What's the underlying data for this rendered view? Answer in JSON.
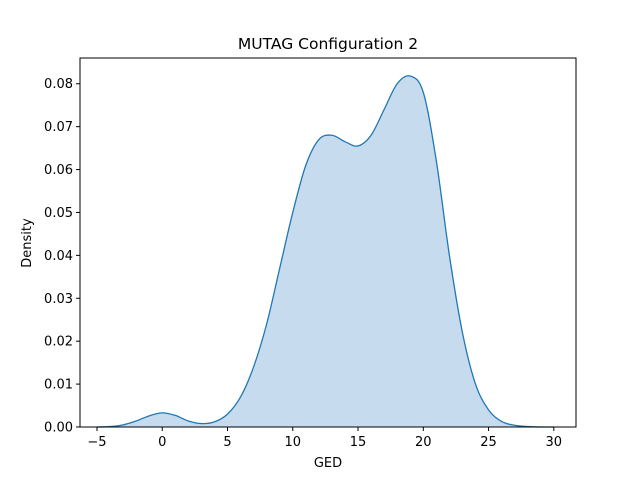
{
  "chart_data": {
    "type": "area",
    "title": "MUTAG Configuration 2",
    "xlabel": "GED",
    "ylabel": "Density",
    "xlim": [
      -6.3,
      31.7
    ],
    "ylim": [
      0,
      0.086
    ],
    "xticks": [
      -5,
      0,
      5,
      10,
      15,
      20,
      25,
      30
    ],
    "xtick_labels": [
      "−5",
      "0",
      "5",
      "10",
      "15",
      "20",
      "25",
      "30"
    ],
    "yticks": [
      0,
      0.01,
      0.02,
      0.03,
      0.04,
      0.05,
      0.06,
      0.07,
      0.08
    ],
    "ytick_labels": [
      "0.00",
      "0.01",
      "0.02",
      "0.03",
      "0.04",
      "0.05",
      "0.06",
      "0.07",
      "0.08"
    ],
    "grid": false,
    "legend": "none",
    "line_color": "#1f77b4",
    "fill_color": "#c6dbee",
    "series": [
      {
        "x": [
          -5,
          -4,
          -3,
          -2,
          -1,
          0,
          1,
          2,
          3,
          4,
          5,
          6,
          7,
          8,
          9,
          10,
          11,
          12,
          13,
          14,
          15,
          16,
          17,
          18,
          19,
          20,
          21,
          22,
          23,
          24,
          25,
          26,
          27,
          28,
          29,
          30
        ],
        "values": [
          0.0,
          0.0001,
          0.0005,
          0.0014,
          0.0026,
          0.0033,
          0.0027,
          0.0014,
          0.0008,
          0.0012,
          0.003,
          0.007,
          0.014,
          0.024,
          0.037,
          0.05,
          0.061,
          0.067,
          0.068,
          0.0665,
          0.0655,
          0.068,
          0.074,
          0.08,
          0.0818,
          0.078,
          0.062,
          0.04,
          0.022,
          0.01,
          0.004,
          0.0013,
          0.0004,
          0.0001,
          0.0,
          0.0
        ]
      }
    ]
  }
}
